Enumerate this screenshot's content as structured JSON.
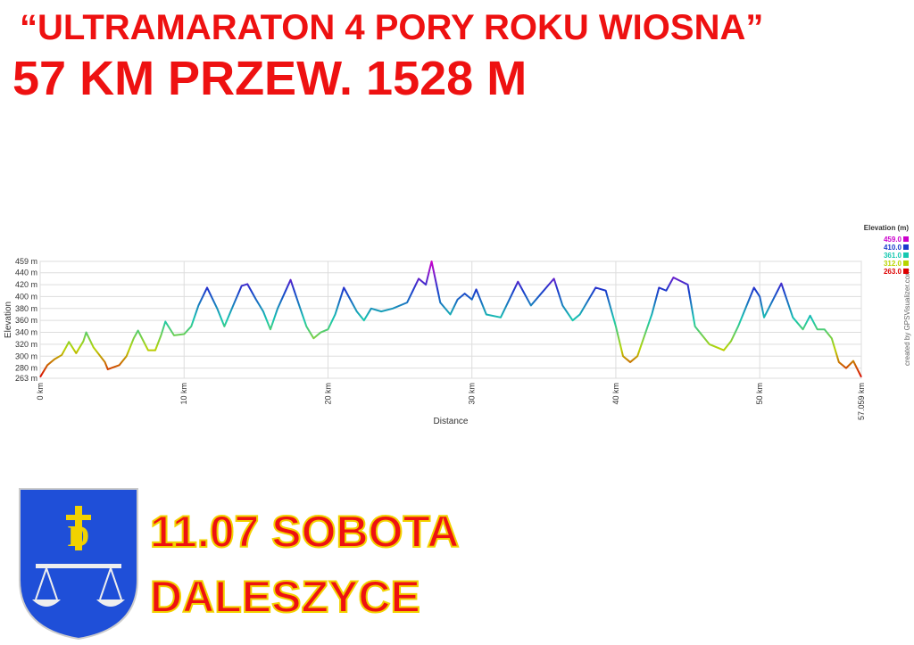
{
  "header": {
    "line1": "“ULTRAMARATON 4 PORY ROKU WIOSNA”",
    "line2": "57 KM PRZEW. 1528 M"
  },
  "footer": {
    "date": "11.07 SOBOTA",
    "place": "DALESZYCE"
  },
  "chart_data": {
    "type": "line",
    "xlabel": "Distance",
    "ylabel": "Elevation",
    "credit": "created by GPSVisualizer.com",
    "legend_title": "Elevation (m)",
    "color_scale": [
      {
        "value": 459,
        "label": "459.0",
        "color": "#cc00cc"
      },
      {
        "value": 410,
        "label": "410.0",
        "color": "#1a3acc"
      },
      {
        "value": 361,
        "label": "361.0",
        "color": "#16c8b0"
      },
      {
        "value": 312,
        "label": "312.0",
        "color": "#b8d400"
      },
      {
        "value": 263,
        "label": "263.0",
        "color": "#dd0000"
      }
    ],
    "x": [
      0,
      0.5,
      1,
      1.5,
      2,
      2.5,
      3,
      3.2,
      3.7,
      4.5,
      4.7,
      5.5,
      6,
      6.5,
      6.8,
      7.5,
      8,
      8.4,
      8.7,
      9.3,
      10,
      10.5,
      11,
      11.6,
      12.3,
      12.8,
      13.5,
      14,
      14.4,
      15,
      15.5,
      16,
      16.5,
      17.4,
      18,
      18.5,
      19,
      19.5,
      20,
      20.5,
      21.1,
      22,
      22.5,
      23,
      23.7,
      24.5,
      25.5,
      26.3,
      26.8,
      27.2,
      27.8,
      28.5,
      29,
      29.5,
      30,
      30.3,
      31,
      32,
      32.6,
      33.2,
      34.1,
      35.7,
      36.3,
      37,
      37.5,
      38.6,
      39.3,
      40,
      40.5,
      41,
      41.5,
      42.5,
      43,
      43.5,
      44,
      45,
      45.5,
      46.5,
      47.5,
      48,
      48.5,
      49.6,
      50,
      50.3,
      51.5,
      52.3,
      53,
      53.5,
      54,
      54.5,
      55,
      55.5,
      56,
      56.5,
      57.059
    ],
    "values": [
      265,
      285,
      295,
      302,
      324,
      305,
      325,
      340,
      315,
      290,
      278,
      285,
      300,
      330,
      343,
      310,
      310,
      335,
      358,
      335,
      337,
      350,
      385,
      415,
      380,
      350,
      390,
      418,
      421,
      395,
      375,
      345,
      380,
      428,
      385,
      350,
      330,
      340,
      345,
      370,
      415,
      375,
      360,
      380,
      375,
      380,
      390,
      430,
      420,
      459,
      390,
      370,
      395,
      405,
      395,
      412,
      370,
      365,
      395,
      425,
      385,
      430,
      385,
      360,
      370,
      415,
      410,
      350,
      300,
      290,
      300,
      370,
      415,
      410,
      432,
      420,
      350,
      320,
      310,
      325,
      350,
      415,
      400,
      365,
      422,
      365,
      345,
      368,
      345,
      345,
      330,
      290,
      280,
      292,
      265
    ],
    "xlim": [
      0,
      57.059
    ],
    "ylim": [
      263,
      459
    ],
    "xticks": [
      {
        "value": 0,
        "label": "0 km"
      },
      {
        "value": 10,
        "label": "10 km"
      },
      {
        "value": 20,
        "label": "20 km"
      },
      {
        "value": 30,
        "label": "30 km"
      },
      {
        "value": 40,
        "label": "40 km"
      },
      {
        "value": 50,
        "label": "50 km"
      },
      {
        "value": 57.059,
        "label": "57.059 km"
      }
    ],
    "yticks": [
      {
        "value": 263,
        "label": "263 m"
      },
      {
        "value": 280,
        "label": "280 m"
      },
      {
        "value": 300,
        "label": "300 m"
      },
      {
        "value": 320,
        "label": "320 m"
      },
      {
        "value": 340,
        "label": "340 m"
      },
      {
        "value": 360,
        "label": "360 m"
      },
      {
        "value": 380,
        "label": "380 m"
      },
      {
        "value": 400,
        "label": "400 m"
      },
      {
        "value": 420,
        "label": "420 m"
      },
      {
        "value": 440,
        "label": "440 m"
      },
      {
        "value": 459,
        "label": "459 m"
      }
    ],
    "grid": true
  }
}
